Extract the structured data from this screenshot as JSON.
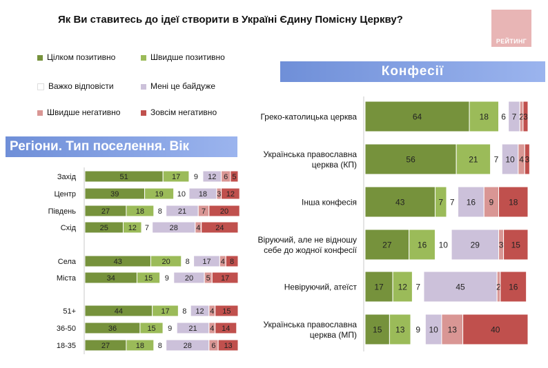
{
  "title": "Як Ви ставитесь до ідеї створити в Україні Єдину Помісну Церкву?",
  "logo_text": "РЕЙТИНГ",
  "legend": [
    {
      "label": "Цілком позитивно",
      "color": "#76923c"
    },
    {
      "label": "Швидше позитивно",
      "color": "#9bbb59"
    },
    {
      "label": "Важко відповісти",
      "color": "#ffffff"
    },
    {
      "label": "Мені це байдуже",
      "color": "#ccc1da"
    },
    {
      "label": "Швидше негативно",
      "color": "#d99694"
    },
    {
      "label": "Зовсім негативно",
      "color": "#c0504d"
    }
  ],
  "banners": {
    "left": "Регіони. Тип поселення. Вік",
    "right": "Конфесії"
  },
  "chart_data": [
    {
      "type": "bar",
      "stacked": true,
      "orientation": "horizontal",
      "title": "Регіони. Тип поселення. Вік",
      "series_names": [
        "Цілком позитивно",
        "Швидше позитивно",
        "Важко відповісти",
        "Мені це байдуже",
        "Швидше негативно",
        "Зовсім негативно"
      ],
      "groups": [
        {
          "rows": [
            {
              "label": "Захід",
              "values": [
                51,
                17,
                9,
                12,
                6,
                5
              ]
            },
            {
              "label": "Центр",
              "values": [
                39,
                19,
                10,
                18,
                3,
                12
              ]
            },
            {
              "label": "Південь",
              "values": [
                27,
                18,
                8,
                21,
                7,
                20
              ]
            },
            {
              "label": "Схід",
              "values": [
                25,
                12,
                7,
                28,
                4,
                24
              ]
            }
          ]
        },
        {
          "rows": [
            {
              "label": "Села",
              "values": [
                43,
                20,
                8,
                17,
                4,
                8
              ]
            },
            {
              "label": "Міста",
              "values": [
                34,
                15,
                9,
                20,
                5,
                17
              ]
            }
          ]
        },
        {
          "rows": [
            {
              "label": "51+",
              "values": [
                44,
                17,
                8,
                12,
                4,
                15
              ]
            },
            {
              "label": "36-50",
              "values": [
                36,
                15,
                9,
                21,
                4,
                14
              ]
            },
            {
              "label": "18-35",
              "values": [
                27,
                18,
                8,
                28,
                6,
                13
              ]
            }
          ]
        }
      ]
    },
    {
      "type": "bar",
      "stacked": true,
      "orientation": "horizontal",
      "title": "Конфесії",
      "series_names": [
        "Цілком позитивно",
        "Швидше позитивно",
        "Важко відповісти",
        "Мені це байдуже",
        "Швидше негативно",
        "Зовсім негативно"
      ],
      "rows": [
        {
          "label": [
            "Греко-католицька церква"
          ],
          "values": [
            64,
            18,
            6,
            7,
            2,
            3
          ]
        },
        {
          "label": [
            "Українська православна",
            "церква (КП)"
          ],
          "values": [
            56,
            21,
            7,
            10,
            4,
            3
          ]
        },
        {
          "label": [
            "Інша конфесія"
          ],
          "values": [
            43,
            7,
            7,
            16,
            9,
            18
          ]
        },
        {
          "label": [
            "Віруючий, але не відношу",
            "себе до жодної конфесії"
          ],
          "values": [
            27,
            16,
            10,
            29,
            3,
            15
          ]
        },
        {
          "label": [
            "Невіруючий, атеїст"
          ],
          "values": [
            17,
            12,
            7,
            45,
            2,
            16
          ]
        },
        {
          "label": [
            "Українська православна",
            "церква (МП)"
          ],
          "values": [
            15,
            13,
            9,
            10,
            13,
            40
          ]
        }
      ]
    }
  ]
}
